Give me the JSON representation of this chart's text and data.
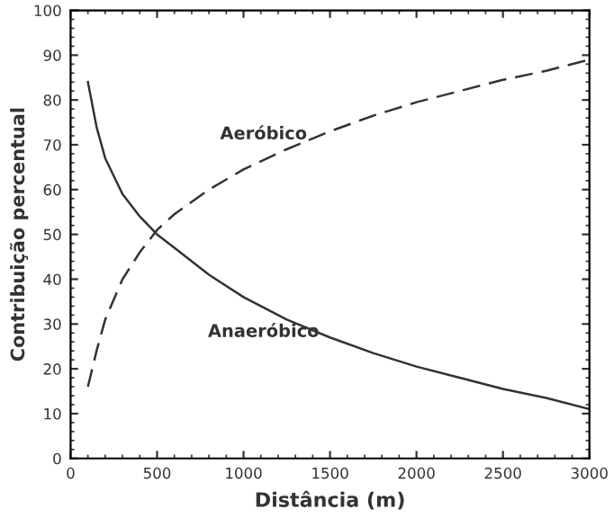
{
  "chart_data": {
    "type": "line",
    "xlabel": "Distância (m)",
    "ylabel": "Contribuição percentual",
    "x": [
      100,
      150,
      200,
      300,
      400,
      500,
      600,
      800,
      1000,
      1250,
      1500,
      1750,
      2000,
      2250,
      2500,
      2750,
      3000
    ],
    "series": [
      {
        "name": "Aeróbico",
        "color": "#333333",
        "line_style": "dashed",
        "values": [
          16,
          24,
          31,
          40,
          46,
          51,
          54.5,
          60,
          64.5,
          69,
          73,
          76.5,
          79.5,
          82,
          84.5,
          86.5,
          89
        ]
      },
      {
        "name": "Anaeróbico",
        "color": "#333333",
        "line_style": "solid",
        "values": [
          84,
          74,
          67,
          59,
          54,
          50,
          47,
          41,
          36,
          31,
          27,
          23.5,
          20.5,
          18,
          15.5,
          13.5,
          11
        ]
      }
    ],
    "xlim": [
      0,
      3000
    ],
    "xticks": [
      0,
      500,
      1000,
      1500,
      2000,
      2500,
      3000
    ],
    "ylim": [
      0,
      100
    ],
    "yticks": [
      0,
      10,
      20,
      30,
      40,
      50,
      60,
      70,
      80,
      90,
      100
    ],
    "grid": false,
    "legend": false,
    "marker": "none"
  }
}
